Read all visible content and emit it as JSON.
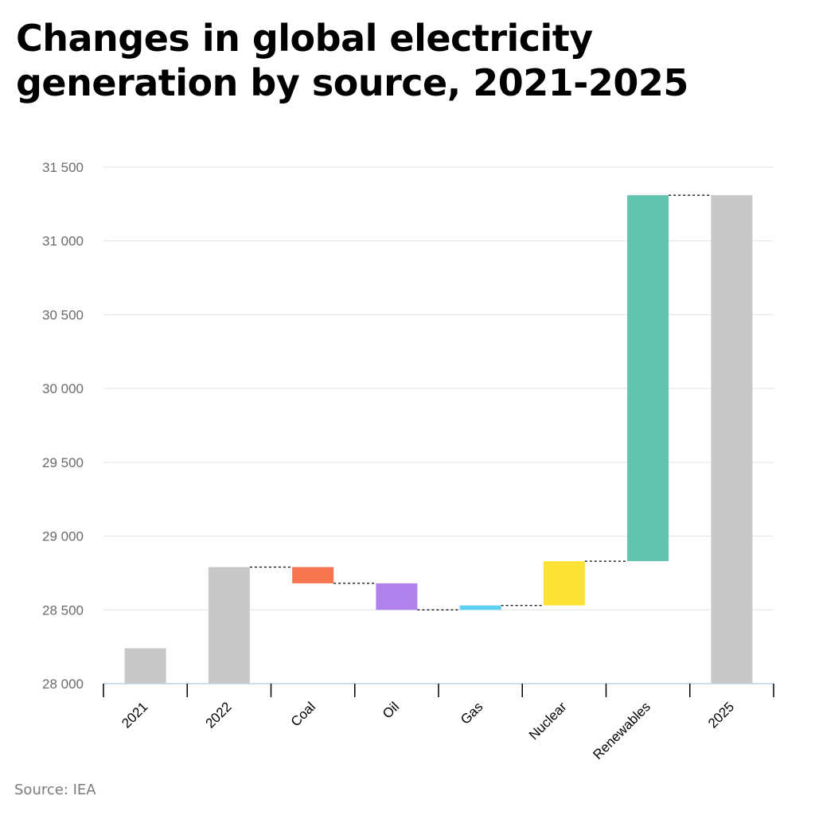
{
  "title": "Changes in global electricity generation by source, 2021-2025",
  "source": "Source: IEA",
  "chart_data": {
    "type": "waterfall",
    "title": "Changes in global electricity generation by source, 2021-2025",
    "xlabel": "",
    "ylabel": "",
    "ylim": [
      28000,
      31500
    ],
    "yticks": [
      28000,
      28500,
      29000,
      29500,
      30000,
      30500,
      31000,
      31500
    ],
    "ytick_labels": [
      "28 000",
      "28 500",
      "29 000",
      "29 500",
      "30 000",
      "30 500",
      "31 000",
      "31 500"
    ],
    "grid": true,
    "categories": [
      "2021",
      "2022",
      "Coal",
      "Oil",
      "Gas",
      "Nuclear",
      "Renewables",
      "2025"
    ],
    "bars": [
      {
        "category": "2021",
        "kind": "total",
        "start": 28000,
        "end": 28240,
        "color": "#c8c8c8"
      },
      {
        "category": "2022",
        "kind": "total",
        "start": 28000,
        "end": 28790,
        "color": "#c8c8c8"
      },
      {
        "category": "Coal",
        "kind": "change",
        "start": 28790,
        "end": 28680,
        "color": "#f7754f"
      },
      {
        "category": "Oil",
        "kind": "change",
        "start": 28680,
        "end": 28500,
        "color": "#b083ec"
      },
      {
        "category": "Gas",
        "kind": "change",
        "start": 28500,
        "end": 28530,
        "color": "#5fd0f5"
      },
      {
        "category": "Nuclear",
        "kind": "change",
        "start": 28530,
        "end": 28830,
        "color": "#fde135"
      },
      {
        "category": "Renewables",
        "kind": "change",
        "start": 28830,
        "end": 31310,
        "color": "#61c4af"
      },
      {
        "category": "2025",
        "kind": "total",
        "start": 28000,
        "end": 31310,
        "color": "#c8c8c8"
      }
    ]
  }
}
